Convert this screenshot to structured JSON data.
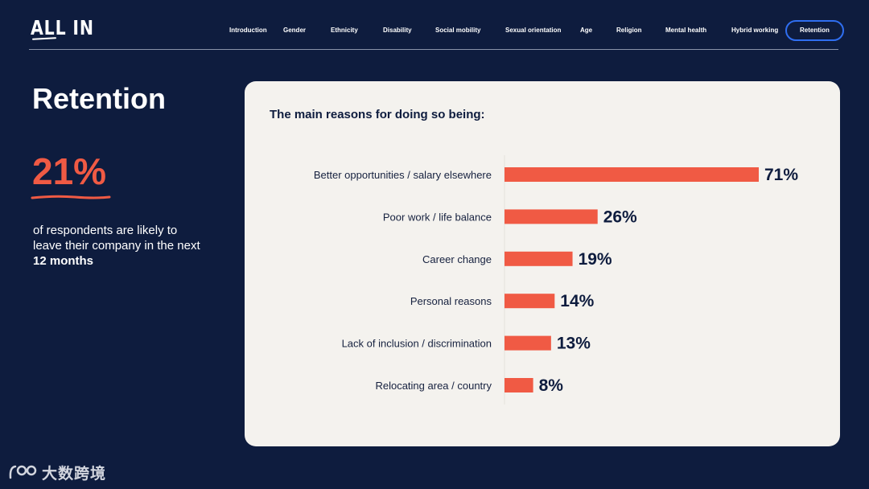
{
  "logo": "ALL IN",
  "nav": {
    "items": [
      {
        "label": "Introduction",
        "active": false
      },
      {
        "label": "Gender",
        "active": false
      },
      {
        "label": "Ethnicity",
        "active": false
      },
      {
        "label": "Disability",
        "active": false
      },
      {
        "label": "Social mobility",
        "active": false
      },
      {
        "label": "Sexual orientation",
        "active": false
      },
      {
        "label": "Age",
        "active": false
      },
      {
        "label": "Religion",
        "active": false
      },
      {
        "label": "Mental health",
        "active": false
      },
      {
        "label": "Hybrid working",
        "active": false
      },
      {
        "label": "Retention",
        "active": true
      }
    ]
  },
  "page": {
    "title": "Retention",
    "stat_value": "21%",
    "stat_text_pre": "of respondents are likely to leave their company in the next ",
    "stat_text_bold": "12 months"
  },
  "colors": {
    "background": "#0e1c3e",
    "accent": "#f05a44",
    "card": "#f4f2ee",
    "nav_active_border": "#2f6ef0"
  },
  "chart_data": {
    "type": "bar",
    "orientation": "horizontal",
    "title": "The main reasons for doing so being:",
    "categories": [
      "Better opportunities / salary elsewhere",
      "Poor work / life balance",
      "Career change",
      "Personal reasons",
      "Lack of inclusion / discrimination",
      "Relocating area / country"
    ],
    "values": [
      71,
      26,
      19,
      14,
      13,
      8
    ],
    "value_labels": [
      "71%",
      "26%",
      "19%",
      "14%",
      "13%",
      "8%"
    ],
    "unit": "%",
    "xlim": [
      0,
      71
    ],
    "grid": false,
    "legend": "none"
  },
  "watermark": {
    "text": "大数跨境",
    "mark": "100"
  }
}
